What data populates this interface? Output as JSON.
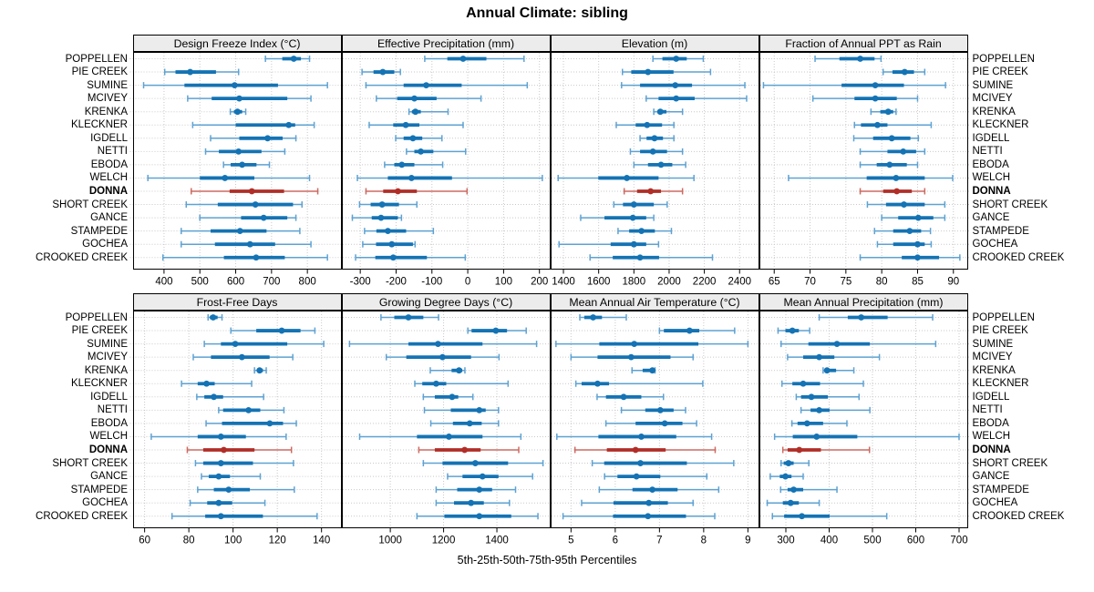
{
  "title": "Annual Climate: sibling",
  "caption": "5th-25th-50th-75th-95th Percentiles",
  "highlight_site": "DONNA",
  "sites": [
    "POPPELLEN",
    "PIE CREEK",
    "SUMINE",
    "MCIVEY",
    "KRENKA",
    "KLECKNER",
    "IGDELL",
    "NETTI",
    "EBODA",
    "WELCH",
    "DONNA",
    "SHORT CREEK",
    "GANCE",
    "STAMPEDE",
    "GOCHEA",
    "CROOKED CREEK"
  ],
  "colors": {
    "blue": "#1473b4",
    "blue_light": "#5ea2d2",
    "red": "#b02e27",
    "red_light": "#cd6a60",
    "strip_bg": "#ececec",
    "grid": "#c9c9c9",
    "border": "#000000",
    "text": "#000000"
  },
  "chart_data": {
    "type": "dotplot-percentiles",
    "percentiles": [
      5,
      25,
      50,
      75,
      95
    ],
    "percentile_labels": [
      "5th",
      "25th",
      "50th",
      "75th",
      "95th"
    ],
    "layout": {
      "rows": 2,
      "cols": 4,
      "grid": "dotted",
      "site_labels": "both-sides"
    },
    "panels": [
      {
        "title": "Design Freeze Index (°C)",
        "row": 0,
        "col": 0,
        "xlim": [
          315,
          895
        ],
        "ticks": [
          400,
          500,
          600,
          700,
          800
        ],
        "values": [
          [
            683,
            730,
            762,
            782,
            806
          ],
          [
            402,
            432,
            473,
            545,
            608
          ],
          [
            343,
            457,
            597,
            718,
            856
          ],
          [
            466,
            533,
            610,
            744,
            810
          ],
          [
            585,
            595,
            605,
            618,
            628
          ],
          [
            480,
            600,
            748,
            766,
            819
          ],
          [
            530,
            610,
            689,
            731,
            768
          ],
          [
            516,
            553,
            608,
            672,
            737
          ],
          [
            566,
            586,
            618,
            658,
            694
          ],
          [
            355,
            500,
            570,
            652,
            806
          ],
          [
            476,
            583,
            645,
            735,
            829
          ],
          [
            462,
            550,
            655,
            760,
            785
          ],
          [
            500,
            615,
            678,
            744,
            768
          ],
          [
            448,
            530,
            612,
            686,
            779
          ],
          [
            448,
            542,
            640,
            710,
            810
          ],
          [
            397,
            567,
            657,
            737,
            856
          ]
        ]
      },
      {
        "title": "Effective Precipitation (mm)",
        "row": 0,
        "col": 1,
        "xlim": [
          -350,
          230
        ],
        "ticks": [
          -300,
          -200,
          -100,
          0,
          100,
          200
        ],
        "values": [
          [
            -120,
            -57,
            -13,
            52,
            157
          ],
          [
            -295,
            -263,
            -237,
            -205,
            -188
          ],
          [
            -284,
            -179,
            -116,
            -17,
            166
          ],
          [
            -255,
            -197,
            -149,
            -87,
            37
          ],
          [
            -164,
            -156,
            -146,
            -131,
            -55
          ],
          [
            -275,
            -208,
            -173,
            -135,
            -13
          ],
          [
            -201,
            -179,
            -153,
            -127,
            -72
          ],
          [
            -171,
            -149,
            -131,
            -96,
            -6
          ],
          [
            -232,
            -205,
            -184,
            -149,
            -70
          ],
          [
            -308,
            -223,
            -157,
            -44,
            208
          ],
          [
            -284,
            -236,
            -195,
            -142,
            -2
          ],
          [
            -302,
            -271,
            -239,
            -192,
            -142
          ],
          [
            -322,
            -268,
            -242,
            -195,
            -185
          ],
          [
            -288,
            -255,
            -223,
            -172,
            -96
          ],
          [
            -293,
            -256,
            -212,
            -153,
            -147
          ],
          [
            -313,
            -258,
            -208,
            -114,
            -7
          ]
        ]
      },
      {
        "title": "Elevation (m)",
        "row": 0,
        "col": 2,
        "xlim": [
          1330,
          2510
        ],
        "ticks": [
          1400,
          1600,
          1800,
          2000,
          2200,
          2400
        ],
        "values": [
          [
            1908,
            1962,
            2040,
            2100,
            2194
          ],
          [
            1735,
            1785,
            1880,
            2025,
            2235
          ],
          [
            1730,
            1835,
            2035,
            2130,
            2430
          ],
          [
            1870,
            1940,
            2040,
            2145,
            2440
          ],
          [
            1913,
            1933,
            1950,
            1985,
            2076
          ],
          [
            1700,
            1810,
            1875,
            1960,
            2027
          ],
          [
            1835,
            1872,
            1917,
            1965,
            2027
          ],
          [
            1780,
            1835,
            1908,
            1988,
            2076
          ],
          [
            1800,
            1880,
            1954,
            2018,
            2094
          ],
          [
            1370,
            1598,
            1760,
            1940,
            2141
          ],
          [
            1745,
            1818,
            1895,
            1954,
            2076
          ],
          [
            1686,
            1738,
            1800,
            1913,
            1989
          ],
          [
            1498,
            1633,
            1794,
            1870,
            1913
          ],
          [
            1710,
            1773,
            1843,
            1919,
            2013
          ],
          [
            1375,
            1668,
            1800,
            1870,
            1940
          ],
          [
            1551,
            1680,
            1835,
            1943,
            2246
          ]
        ]
      },
      {
        "title": "Fraction of Annual PPT as Rain",
        "row": 0,
        "col": 3,
        "xlim": [
          63,
          92
        ],
        "ticks": [
          65,
          70,
          75,
          80,
          85,
          90
        ],
        "values": [
          [
            70.7,
            74.1,
            77.0,
            79.0,
            79.9
          ],
          [
            80.2,
            81.5,
            83.2,
            84.5,
            86.0
          ],
          [
            63.5,
            74.4,
            79.1,
            83.1,
            88.9
          ],
          [
            70.4,
            76.2,
            79.1,
            82.1,
            85.0
          ],
          [
            78.5,
            79.8,
            80.9,
            81.6,
            82.0
          ],
          [
            76.2,
            77.1,
            79.4,
            80.8,
            86.9
          ],
          [
            76.1,
            78.8,
            81.4,
            84.0,
            85.1
          ],
          [
            77.0,
            80.8,
            83.0,
            84.8,
            86.0
          ],
          [
            77.0,
            79.3,
            81.1,
            83.5,
            85.0
          ],
          [
            67.0,
            77.9,
            82.0,
            86.0,
            89.9
          ],
          [
            77.0,
            80.2,
            82.1,
            84.2,
            86.0
          ],
          [
            78.0,
            80.6,
            83.1,
            86.0,
            88.8
          ],
          [
            80.0,
            82.3,
            85.1,
            87.2,
            88.8
          ],
          [
            79.0,
            81.6,
            83.9,
            85.5,
            86.8
          ],
          [
            79.4,
            81.6,
            85.0,
            86.0,
            86.9
          ],
          [
            77.0,
            82.8,
            85.0,
            88.0,
            90.9
          ]
        ]
      },
      {
        "title": "Frost-Free Days",
        "row": 1,
        "col": 0,
        "xlim": [
          55,
          149
        ],
        "ticks": [
          60,
          80,
          100,
          120,
          140
        ],
        "values": [
          [
            88.7,
            89.5,
            91,
            93,
            95
          ],
          [
            99,
            110.5,
            122,
            130.5,
            137
          ],
          [
            87,
            94.5,
            101,
            124.5,
            141
          ],
          [
            82,
            90,
            104,
            116.5,
            127
          ],
          [
            109.7,
            111,
            112,
            113.5,
            115
          ],
          [
            76.7,
            84,
            88,
            91.7,
            108.4
          ],
          [
            83.6,
            87,
            91.3,
            95.5,
            113.8
          ],
          [
            93.5,
            95.5,
            107,
            112.3,
            123
          ],
          [
            87.8,
            95,
            116.6,
            122.6,
            128.6
          ],
          [
            63,
            84,
            94.5,
            105.8,
            124
          ],
          [
            79.3,
            86.5,
            95.8,
            109.7,
            126.4
          ],
          [
            83,
            86.5,
            94.5,
            109,
            127.3
          ],
          [
            85.7,
            89,
            93.5,
            98.6,
            112.3
          ],
          [
            84,
            91.3,
            98,
            107.6,
            127.7
          ],
          [
            80.6,
            88.3,
            93.5,
            99.6,
            114.4
          ],
          [
            72.4,
            87.4,
            94.5,
            113.5,
            138
          ]
        ]
      },
      {
        "title": "Growing Degree Days (°C)",
        "row": 1,
        "col": 1,
        "xlim": [
          820,
          1600
        ],
        "ticks": [
          1000,
          1200,
          1400
        ],
        "values": [
          [
            965,
            1015,
            1068,
            1124,
            1181
          ],
          [
            1291,
            1305,
            1396,
            1438,
            1510
          ],
          [
            847,
            1068,
            1179,
            1346,
            1549
          ],
          [
            985,
            1060,
            1196,
            1303,
            1408
          ],
          [
            1150,
            1230,
            1258,
            1270,
            1280
          ],
          [
            1092,
            1120,
            1172,
            1210,
            1442
          ],
          [
            1124,
            1167,
            1232,
            1255,
            1310
          ],
          [
            1128,
            1227,
            1334,
            1358,
            1406
          ],
          [
            1152,
            1235,
            1298,
            1343,
            1406
          ],
          [
            885,
            1100,
            1220,
            1346,
            1490
          ],
          [
            1107,
            1167,
            1279,
            1339,
            1482
          ],
          [
            1124,
            1196,
            1319,
            1442,
            1573
          ],
          [
            1215,
            1271,
            1346,
            1406,
            1534
          ],
          [
            1172,
            1251,
            1334,
            1382,
            1470
          ],
          [
            1172,
            1239,
            1303,
            1351,
            1447
          ],
          [
            1100,
            1203,
            1334,
            1454,
            1554
          ]
        ]
      },
      {
        "title": "Mean Annual Air Temperature (°C)",
        "row": 1,
        "col": 2,
        "xlim": [
          4.55,
          9.25
        ],
        "ticks": [
          5,
          6,
          7,
          8,
          9
        ],
        "values": [
          [
            5.2,
            5.3,
            5.5,
            5.7,
            6.25
          ],
          [
            7.0,
            7.1,
            7.68,
            7.9,
            8.7
          ],
          [
            4.66,
            5.64,
            6.43,
            7.88,
            9.0
          ],
          [
            5.0,
            5.6,
            6.36,
            7.25,
            7.76
          ],
          [
            6.38,
            6.62,
            6.84,
            6.87,
            6.9
          ],
          [
            5.11,
            5.24,
            5.6,
            5.86,
            7.98
          ],
          [
            5.59,
            5.79,
            6.19,
            6.59,
            7.09
          ],
          [
            6.14,
            6.68,
            7.02,
            7.32,
            7.59
          ],
          [
            5.79,
            6.46,
            7.12,
            7.52,
            7.84
          ],
          [
            4.68,
            5.62,
            6.59,
            7.38,
            8.18
          ],
          [
            5.09,
            5.81,
            6.46,
            7.14,
            8.26
          ],
          [
            5.48,
            5.75,
            6.57,
            7.62,
            8.68
          ],
          [
            5.76,
            6.05,
            6.48,
            7.02,
            8.07
          ],
          [
            5.64,
            6.39,
            6.84,
            7.41,
            8.34
          ],
          [
            5.24,
            5.96,
            6.76,
            7.19,
            7.76
          ],
          [
            4.82,
            5.95,
            6.74,
            7.6,
            8.25
          ]
        ]
      },
      {
        "title": "Mean Annual Precipitation (mm)",
        "row": 1,
        "col": 3,
        "xlim": [
          240,
          720
        ],
        "ticks": [
          300,
          400,
          500,
          600,
          700
        ],
        "values": [
          [
            377,
            443,
            474,
            535,
            639
          ],
          [
            282,
            299,
            315,
            330,
            355
          ],
          [
            289,
            352,
            418,
            494,
            646
          ],
          [
            304,
            340,
            377,
            412,
            516
          ],
          [
            386,
            391,
            395,
            416,
            457
          ],
          [
            291,
            315,
            340,
            379,
            479
          ],
          [
            324,
            335,
            359,
            397,
            469
          ],
          [
            335,
            357,
            377,
            401,
            494
          ],
          [
            314,
            327,
            349,
            386,
            441
          ],
          [
            274,
            316,
            371,
            465,
            700
          ],
          [
            293,
            304,
            331,
            381,
            493
          ],
          [
            289,
            295,
            306,
            318,
            353
          ],
          [
            264,
            286,
            299,
            313,
            340
          ],
          [
            288,
            304,
            318,
            340,
            418
          ],
          [
            257,
            293,
            311,
            330,
            377
          ],
          [
            269,
            296,
            337,
            401,
            533
          ]
        ]
      }
    ]
  }
}
